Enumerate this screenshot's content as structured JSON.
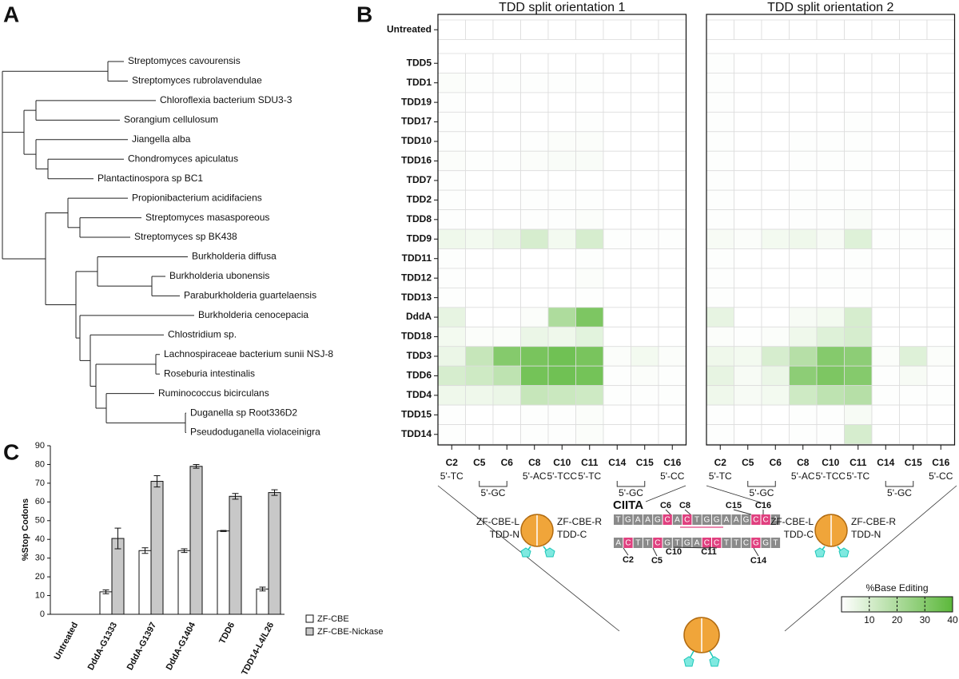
{
  "panel_labels": [
    "A",
    "B",
    "C"
  ],
  "chart_data": [
    {
      "type": "dendrogram",
      "leaves": [
        "Streptomyces cavourensis",
        "Streptomyces rubrolavendulae",
        "Chloroflexia bacterium SDU3-3",
        "Sorangium cellulosum",
        "Jiangella alba",
        "Chondromyces apiculatus",
        "Plantactinospora sp BC1",
        "Propionibacterium acidifaciens",
        "Streptomyces masasporeous",
        "Streptomyces sp BK438",
        "Burkholderia diffusa",
        "Burkholderia ubonensis",
        "Paraburkholderia guartelaensis",
        "Burkholderia cenocepacia",
        "Chlostridium sp.",
        "Lachnospiraceae bacterium sunii NSJ-8",
        "Roseburia intestinalis",
        "Ruminococcus bicirculans",
        "Duganella sp Root336D2",
        "Pseudoduganella violaceinigra"
      ]
    },
    {
      "type": "heatmap",
      "title": "TDD split orientation 1",
      "rows": [
        "Untreated",
        "TDD5",
        "TDD1",
        "TDD19",
        "TDD17",
        "TDD10",
        "TDD16",
        "TDD7",
        "TDD2",
        "TDD8",
        "TDD9",
        "TDD11",
        "TDD12",
        "TDD13",
        "DddA",
        "TDD18",
        "TDD3",
        "TDD6",
        "TDD4",
        "TDD15",
        "TDD14"
      ],
      "columns": [
        "C2",
        "C5",
        "C6",
        "C8",
        "C10",
        "C11",
        "C14",
        "C15",
        "C16"
      ],
      "contexts": [
        "5'-TC",
        "5'-GC",
        "5'-AC",
        "5'-TCC",
        "5'-TC",
        "5'-GC",
        "5'-CC"
      ],
      "values": [
        [
          0,
          0,
          0,
          0,
          0,
          0,
          0,
          0,
          0
        ],
        [
          0,
          0,
          0,
          0,
          0,
          0,
          0,
          0,
          0
        ],
        [
          1,
          0.5,
          0.5,
          0.5,
          0.5,
          0.5,
          0,
          0,
          0
        ],
        [
          0.5,
          0,
          0,
          0,
          0,
          0,
          0,
          0,
          0
        ],
        [
          0.5,
          0,
          0,
          0,
          0,
          0.5,
          0,
          0,
          0
        ],
        [
          0.5,
          0,
          0,
          0.5,
          1,
          1,
          0,
          0,
          0
        ],
        [
          1,
          0.5,
          0.5,
          1,
          1.5,
          1.5,
          0,
          0,
          0
        ],
        [
          0.5,
          0,
          0,
          0,
          0,
          0,
          0,
          0,
          0
        ],
        [
          0.5,
          0,
          0,
          0.5,
          0.5,
          0.5,
          0,
          0,
          0
        ],
        [
          0.5,
          0,
          0,
          0.5,
          0.5,
          1,
          0,
          0,
          0
        ],
        [
          4,
          3,
          5,
          10,
          3,
          10,
          0.5,
          0.5,
          0.5
        ],
        [
          0.5,
          0,
          0,
          0,
          0,
          0.5,
          0,
          0,
          0
        ],
        [
          0.5,
          0,
          0,
          0,
          0,
          1,
          0,
          0,
          0
        ],
        [
          0.5,
          0,
          0,
          0,
          0,
          0.5,
          0,
          0,
          0
        ],
        [
          6,
          0,
          0,
          1,
          20,
          32,
          0,
          0,
          0
        ],
        [
          3,
          1,
          1,
          5,
          4,
          7,
          0,
          0,
          0
        ],
        [
          5,
          14,
          30,
          33,
          35,
          33,
          1,
          3,
          1
        ],
        [
          10,
          12,
          16,
          34,
          35,
          34,
          0.5,
          1,
          0.5
        ],
        [
          4,
          4,
          5,
          14,
          13,
          12,
          0.5,
          0.5,
          0.5
        ],
        [
          0.5,
          0,
          0,
          0.5,
          0.5,
          1,
          0,
          0,
          0
        ],
        [
          0.5,
          0,
          0,
          0.5,
          0.5,
          1,
          0,
          0,
          0
        ]
      ]
    },
    {
      "type": "heatmap",
      "title": "TDD split orientation 2",
      "columns": [
        "C2",
        "C5",
        "C6",
        "C8",
        "C10",
        "C11",
        "C14",
        "C15",
        "C16"
      ],
      "contexts": [
        "5'-TC",
        "5'-GC",
        "5'-AC",
        "5'-TCC",
        "5'-TC",
        "5'-GC",
        "5'-CC"
      ],
      "values": [
        [
          0,
          0,
          0,
          0,
          0,
          0,
          0,
          0,
          0
        ],
        [
          0.5,
          0,
          0,
          0,
          0,
          0,
          0,
          0,
          0
        ],
        [
          0.5,
          0,
          0,
          0,
          0,
          0,
          0,
          0,
          0
        ],
        [
          0.5,
          0,
          0,
          0,
          0,
          0,
          0,
          0,
          0
        ],
        [
          0.5,
          0,
          0,
          0,
          0,
          0.5,
          0,
          0,
          0
        ],
        [
          0.5,
          0,
          0,
          0.5,
          0.5,
          0.5,
          0,
          0,
          0
        ],
        [
          0.5,
          0,
          0,
          0.5,
          0.5,
          0.5,
          0,
          0,
          0
        ],
        [
          0.5,
          0,
          0,
          0,
          0,
          0,
          0,
          0,
          0
        ],
        [
          0.5,
          0,
          0,
          0.5,
          0.5,
          0.5,
          0,
          0,
          0
        ],
        [
          0.5,
          0,
          0,
          0.5,
          0.5,
          1.5,
          0,
          0,
          0
        ],
        [
          2,
          1,
          3,
          4,
          2,
          8,
          0.5,
          0.5,
          0.5
        ],
        [
          0.5,
          0,
          0,
          0,
          0,
          0.5,
          0,
          0,
          0
        ],
        [
          0.5,
          0,
          0,
          0,
          0.5,
          0.5,
          0,
          0,
          0
        ],
        [
          0.5,
          0,
          0,
          0,
          0,
          0.5,
          0,
          0,
          0
        ],
        [
          6,
          0,
          0,
          2,
          3,
          10,
          0,
          0,
          0
        ],
        [
          1,
          0.5,
          1,
          4,
          8,
          10,
          0,
          0,
          0
        ],
        [
          4,
          3,
          10,
          18,
          30,
          28,
          1,
          8,
          1
        ],
        [
          6,
          2,
          5,
          28,
          32,
          30,
          0.5,
          2,
          0.5
        ],
        [
          4,
          2,
          3,
          12,
          16,
          18,
          0.5,
          0.5,
          0.5
        ],
        [
          0.5,
          0,
          0,
          0.5,
          0.5,
          2,
          0,
          0,
          0
        ],
        [
          0.5,
          0,
          0,
          0.5,
          0.5,
          10,
          0,
          0,
          0
        ]
      ],
      "colorbar": {
        "label": "%Base Editing",
        "lim": [
          0,
          40
        ],
        "ticks": [
          10,
          20,
          30,
          40
        ],
        "colors": [
          "#ffffff",
          "#5cb83b"
        ]
      }
    },
    {
      "type": "bar",
      "ylabel": "%Stop Codons",
      "categories": [
        "Untreated",
        "DddA-G1333",
        "DddA-G1397",
        "DddA-G1404",
        "TDD6",
        "TDD14-L4/L26"
      ],
      "series": [
        {
          "name": "ZF-CBE",
          "color": "#ffffff",
          "values": [
            0,
            12,
            34,
            34,
            44.5,
            13.5
          ],
          "errors": [
            0,
            1,
            1.5,
            1,
            0.3,
            1
          ]
        },
        {
          "name": "ZF-CBE-Nickase",
          "color": "#c8c8c8",
          "values": [
            0,
            40.5,
            71,
            79,
            63,
            65
          ],
          "errors": [
            0,
            5.5,
            3,
            1,
            1.5,
            1.5
          ]
        }
      ],
      "ylim": [
        0,
        90
      ],
      "yticks": [
        0,
        10,
        20,
        30,
        40,
        50,
        60,
        70,
        80,
        90
      ]
    }
  ],
  "diagram": {
    "gene": "CIITA",
    "top_strand": [
      "T",
      "G",
      "A",
      "A",
      "G",
      "C",
      "A",
      "C",
      "T",
      "G",
      "G",
      "A",
      "A",
      "G",
      "C",
      "C",
      "A"
    ],
    "bottom_strand": [
      "A",
      "C",
      "T",
      "T",
      "C",
      "G",
      "T",
      "G",
      "A",
      "C",
      "C",
      "T",
      "T",
      "C",
      "G",
      "G",
      "T"
    ],
    "site_labels": [
      "C6",
      "C8",
      "C15",
      "C16",
      "C2",
      "C5",
      "C10",
      "C11",
      "C14"
    ],
    "enzymes": [
      [
        "ZF-CBE-L",
        "TDD-N",
        "ZF-CBE-R",
        "TDD-C"
      ],
      [
        "ZF-CBE-L",
        "TDD-C",
        "ZF-CBE-R",
        "TDD-N"
      ]
    ]
  }
}
